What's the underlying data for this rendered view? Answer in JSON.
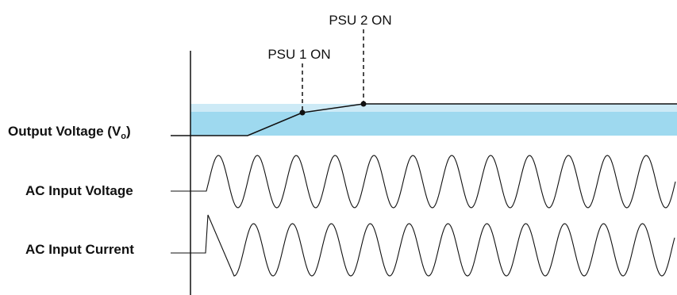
{
  "diagram": {
    "signals": {
      "output_voltage": "Output Voltage (V",
      "output_voltage_subscript": "o",
      "output_voltage_close": ")",
      "ac_input_voltage": "AC Input Voltage",
      "ac_input_current": "AC Input Current"
    },
    "events": {
      "psu1": "PSU 1 ON",
      "psu2": "PSU 2 ON"
    },
    "colors": {
      "band_light": "#cdeaf6",
      "band_dark": "#9ed9ef",
      "line": "#111111"
    }
  }
}
